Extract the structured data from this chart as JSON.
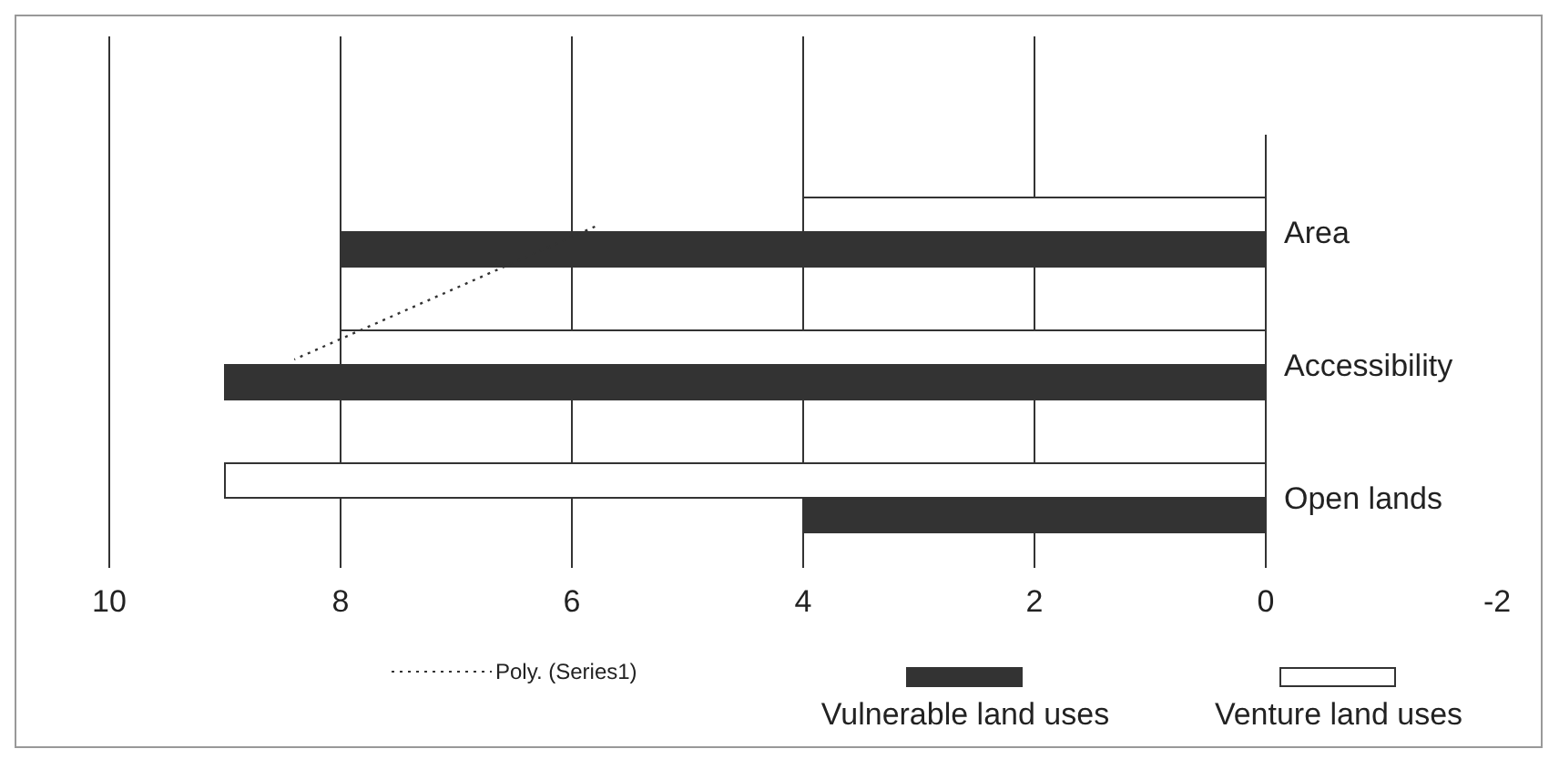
{
  "chart_data": {
    "type": "bar",
    "orientation": "horizontal",
    "categories": [
      "Area",
      "Accessibility",
      "Open lands"
    ],
    "series": [
      {
        "name": "Venture land uses",
        "color": "#ffffff",
        "values": [
          4,
          8,
          9
        ]
      },
      {
        "name": "Vulnerable land uses",
        "color": "#333333",
        "values": [
          8,
          9,
          4
        ]
      },
      {
        "name": "Poly. (Series1)",
        "type": "line",
        "line_style": "dotted",
        "color": "#333333",
        "values": [
          5.8,
          8.4,
          null
        ]
      }
    ],
    "xlim": [
      10,
      -2
    ],
    "xticks": [
      10,
      8,
      6,
      4,
      2,
      0,
      -2
    ],
    "grid": "x",
    "legend": "bottom"
  }
}
